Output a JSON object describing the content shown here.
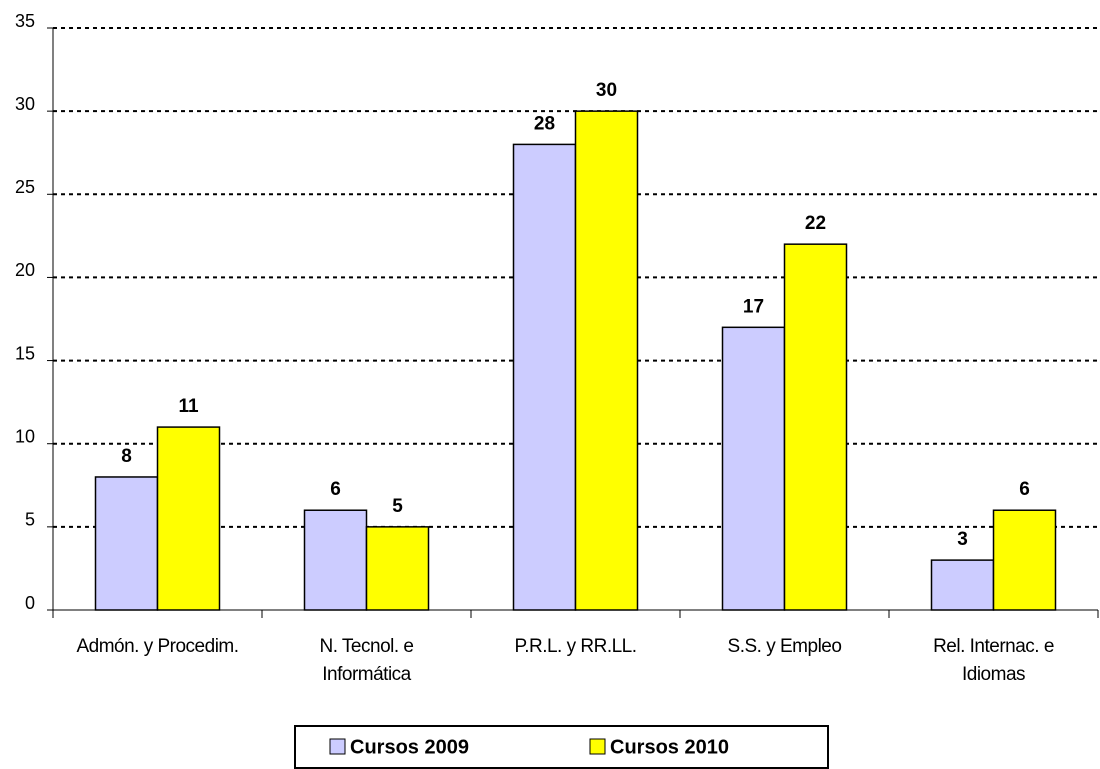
{
  "chart_data": {
    "type": "bar",
    "categories": [
      "Admón. y Procedim.",
      "N. Tecnol. e Informática",
      "P.R.L. y RR.LL.",
      "S.S. y Empleo",
      "Rel. Internac. e Idiomas"
    ],
    "series": [
      {
        "name": "Cursos 2009",
        "color": "#ccccff",
        "values": [
          8,
          6,
          28,
          17,
          3
        ]
      },
      {
        "name": "Cursos 2010",
        "color": "#ffff00",
        "values": [
          11,
          5,
          30,
          22,
          6
        ]
      }
    ],
    "ylim": [
      0,
      35
    ],
    "yticks": [
      0,
      5,
      10,
      15,
      20,
      25,
      30,
      35
    ],
    "grid": true,
    "legend": "bottom"
  }
}
